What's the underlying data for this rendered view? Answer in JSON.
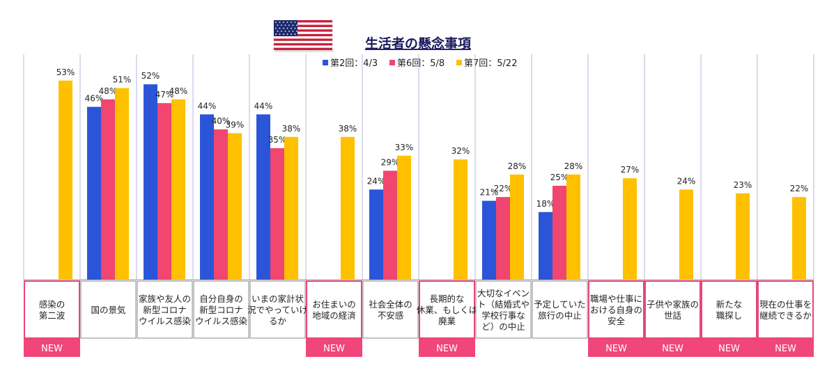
{
  "chart_data": {
    "type": "bar",
    "title": "生活者の懸念事項",
    "flag_icon": "us-flag-icon",
    "legend_position": "top",
    "ylim": [
      0,
      60
    ],
    "grid": false,
    "series": [
      {
        "name": "第2回：4/3",
        "color": "#2b55d9"
      },
      {
        "name": "第6回：5/8",
        "color": "#f0466f"
      },
      {
        "name": "第7回：5/22",
        "color": "#ffc000"
      }
    ],
    "categories": [
      {
        "label": [
          "感染の",
          "第二波"
        ],
        "values": [
          null,
          null,
          53
        ],
        "new": true
      },
      {
        "label": [
          "国の景気"
        ],
        "values": [
          46,
          48,
          51
        ],
        "new": false
      },
      {
        "label": [
          "家族や友人の",
          "新型コロナ",
          "ウイルス感染"
        ],
        "values": [
          52,
          47,
          48
        ],
        "new": false
      },
      {
        "label": [
          "自分自身の",
          "新型コロナ",
          "ウイルス感染"
        ],
        "values": [
          44,
          40,
          39
        ],
        "new": false
      },
      {
        "label": [
          "いまの家計状",
          "況でやっていけ",
          "るか"
        ],
        "values": [
          44,
          35,
          38
        ],
        "new": false
      },
      {
        "label": [
          "お住まいの",
          "地域の経済"
        ],
        "values": [
          null,
          null,
          38
        ],
        "new": true
      },
      {
        "label": [
          "社会全体の",
          "不安感"
        ],
        "values": [
          24,
          29,
          33
        ],
        "new": false
      },
      {
        "label": [
          "長期的な",
          "休業、もしくは",
          "廃業"
        ],
        "values": [
          null,
          null,
          32
        ],
        "new": true
      },
      {
        "label": [
          "大切なイベン",
          "ト（結婚式や",
          "学校行事な",
          "ど）の中止"
        ],
        "values": [
          21,
          22,
          28
        ],
        "new": false
      },
      {
        "label": [
          "予定していた",
          "旅行の中止"
        ],
        "values": [
          18,
          25,
          28
        ],
        "new": false
      },
      {
        "label": [
          "職場や仕事に",
          "おける自身の",
          "安全"
        ],
        "values": [
          null,
          null,
          27
        ],
        "new": true
      },
      {
        "label": [
          "子供や家族の",
          "世話"
        ],
        "values": [
          null,
          null,
          24
        ],
        "new": true
      },
      {
        "label": [
          "新たな",
          "職探し"
        ],
        "values": [
          null,
          null,
          23
        ],
        "new": true
      },
      {
        "label": [
          "現在の仕事を",
          "継続できるか"
        ],
        "values": [
          null,
          null,
          22
        ],
        "new": true
      }
    ],
    "new_label": "NEW",
    "value_suffix": "%"
  }
}
